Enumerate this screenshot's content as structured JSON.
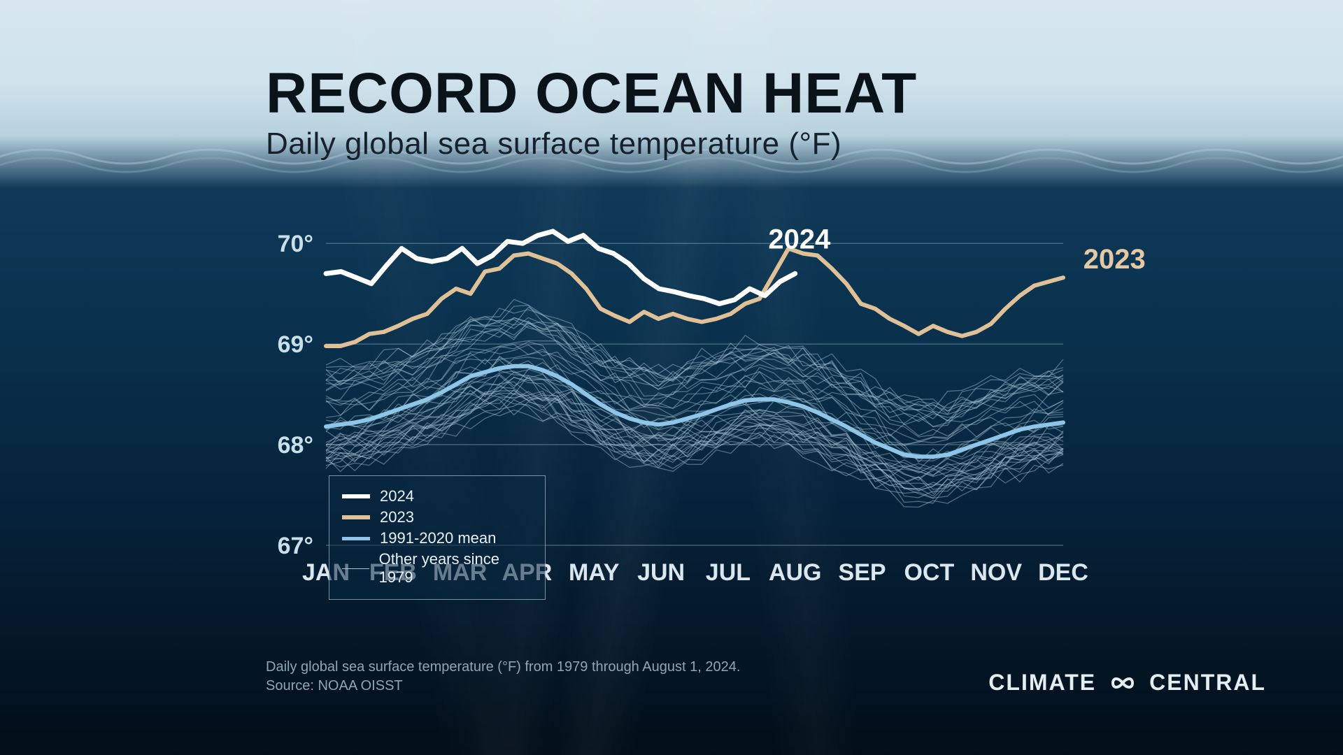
{
  "title": "RECORD OCEAN HEAT",
  "subtitle": "Daily global sea surface temperature (°F)",
  "title_fontsize": 82,
  "subtitle_fontsize": 44,
  "title_color": "#0a121a",
  "subtitle_color": "#15212c",
  "footnote_line1": "Daily global sea surface temperature (°F) from 1979 through August 1, 2024.",
  "footnote_line2": "Source: NOAA OISST",
  "footnote_color": "#8fa6b4",
  "footnote_fontsize": 20,
  "brand_left": "CLIMATE",
  "brand_right": "CENTRAL",
  "brand_color": "#e4edf2",
  "brand_fontsize": 32,
  "background_gradient": [
    "#d8e7ef",
    "#cfe2ec",
    "#b7d1de",
    "#0f3957",
    "#0a3350",
    "#072a44",
    "#051f35",
    "#031524",
    "#020d18"
  ],
  "chart": {
    "type": "line",
    "x_months": [
      "JAN",
      "FEB",
      "MAR",
      "APR",
      "MAY",
      "JUN",
      "JUL",
      "AUG",
      "SEP",
      "OCT",
      "NOV",
      "DEC"
    ],
    "xlabel_fontsize": 34,
    "xlabel_color": "#dbe7ef",
    "ylim": [
      67,
      70.3
    ],
    "yticks": [
      67,
      68,
      69,
      70
    ],
    "ytick_labels": [
      "67°",
      "68°",
      "69°",
      "70°"
    ],
    "ytick_fontsize": 34,
    "ytick_color": "#c9dfea",
    "grid_color": "#b8cdd9",
    "grid_opacity": 0.35,
    "annotations": {
      "label_2024": "2024",
      "label_2024_x_month": 7.6,
      "label_2024_y": 69.95,
      "label_2024_color": "#ffffff",
      "label_2023": "2023",
      "label_2023_x_month": 12.3,
      "label_2023_y": 69.75,
      "label_2023_color": "#e5c9a5",
      "annotation_fontsize": 40
    },
    "series_2024": {
      "color": "#ffffff",
      "width": 7,
      "y": [
        69.7,
        69.72,
        69.66,
        69.6,
        69.78,
        69.95,
        69.85,
        69.82,
        69.85,
        69.95,
        69.8,
        69.88,
        70.02,
        70.0,
        70.08,
        70.12,
        70.02,
        70.08,
        69.95,
        69.9,
        69.8,
        69.65,
        69.55,
        69.52,
        69.48,
        69.45,
        69.4,
        69.44,
        69.55,
        69.48,
        69.62,
        69.7
      ]
    },
    "series_2023": {
      "color": "#e0c197",
      "width": 6,
      "y": [
        68.98,
        68.98,
        69.02,
        69.1,
        69.12,
        69.18,
        69.25,
        69.3,
        69.45,
        69.55,
        69.5,
        69.72,
        69.75,
        69.88,
        69.9,
        69.85,
        69.8,
        69.7,
        69.55,
        69.35,
        69.28,
        69.22,
        69.32,
        69.25,
        69.3,
        69.25,
        69.22,
        69.25,
        69.3,
        69.4,
        69.45,
        69.7,
        69.95,
        69.9,
        69.88,
        69.75,
        69.6,
        69.4,
        69.35,
        69.25,
        69.18,
        69.1,
        69.18,
        69.12,
        69.08,
        69.12,
        69.2,
        69.35,
        69.48,
        69.58,
        69.62,
        69.66
      ]
    },
    "series_mean": {
      "label": "1991-2020 mean",
      "color": "#8fc6e8",
      "width": 6,
      "y": [
        68.18,
        68.2,
        68.22,
        68.25,
        68.3,
        68.35,
        68.4,
        68.45,
        68.52,
        68.6,
        68.68,
        68.72,
        68.76,
        68.78,
        68.78,
        68.74,
        68.68,
        68.6,
        68.5,
        68.4,
        68.32,
        68.26,
        68.22,
        68.2,
        68.22,
        68.26,
        68.3,
        68.35,
        68.4,
        68.44,
        68.45,
        68.45,
        68.42,
        68.38,
        68.32,
        68.25,
        68.18,
        68.1,
        68.02,
        67.96,
        67.9,
        67.88,
        67.88,
        67.9,
        67.95,
        68.0,
        68.05,
        68.1,
        68.15,
        68.18,
        68.2,
        68.22
      ]
    },
    "series_other": {
      "label": "Other years since 1979",
      "color": "#a9c6d6",
      "opacity": 0.45,
      "width": 1.3,
      "count": 42,
      "base_offset_min": -0.45,
      "base_offset_max": 0.6,
      "noise_amp": 0.1
    },
    "legend": {
      "bg": "rgba(10,40,65,0.55)",
      "border": "rgba(200,220,235,0.6)",
      "text_color": "#e8f1f7",
      "fontsize": 22,
      "items": [
        {
          "label": "2024",
          "color": "#ffffff",
          "width": 6
        },
        {
          "label": "2023",
          "color": "#e0c197",
          "width": 6
        },
        {
          "label": "1991-2020 mean",
          "color": "#8fc6e8",
          "width": 5
        },
        {
          "label": "Other years since 1979",
          "color": "#a9c6d6",
          "width": 1.5
        }
      ]
    }
  }
}
